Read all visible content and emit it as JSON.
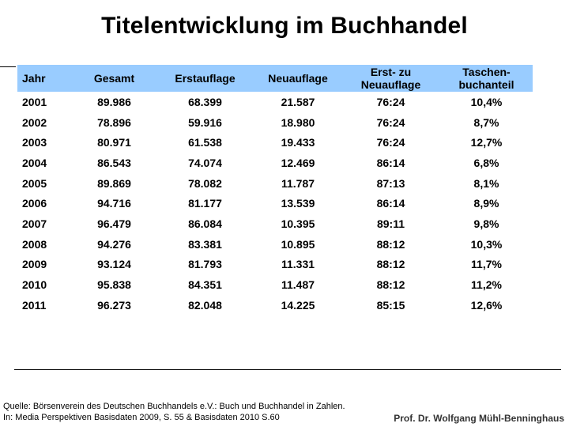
{
  "title": "Titelentwicklung im Buchhandel",
  "table": {
    "headers": [
      [
        "Jahr"
      ],
      [
        "Gesamt"
      ],
      [
        "Erstauflage"
      ],
      [
        "Neuauflage"
      ],
      [
        "Erst- zu",
        "Neuauflage"
      ],
      [
        "Taschen-",
        "buchanteil"
      ]
    ],
    "rows": [
      [
        "2001",
        "89.986",
        "68.399",
        "21.587",
        "76:24",
        "10,4%"
      ],
      [
        "2002",
        "78.896",
        "59.916",
        "18.980",
        "76:24",
        "8,7%"
      ],
      [
        "2003",
        "80.971",
        "61.538",
        "19.433",
        "76:24",
        "12,7%"
      ],
      [
        "2004",
        "86.543",
        "74.074",
        "12.469",
        "86:14",
        "6,8%"
      ],
      [
        "2005",
        "89.869",
        "78.082",
        "11.787",
        "87:13",
        "8,1%"
      ],
      [
        "2006",
        "94.716",
        "81.177",
        "13.539",
        "86:14",
        "8,9%"
      ],
      [
        "2007",
        "96.479",
        "86.084",
        "10.395",
        "89:11",
        "9,8%"
      ],
      [
        "2008",
        "94.276",
        "83.381",
        "10.895",
        "88:12",
        "10,3%"
      ],
      [
        "2009",
        "93.124",
        "81.793",
        "11.331",
        "88:12",
        "11,7%"
      ],
      [
        "2010",
        "95.838",
        "84.351",
        "11.487",
        "88:12",
        "11,2%"
      ],
      [
        "2011",
        "96.273",
        "82.048",
        "14.225",
        "85:15",
        "12,6%"
      ]
    ],
    "header_color": "#99ccff"
  },
  "source": {
    "line1": "Quelle: Börsenverein des Deutschen Buchhandels e.V.: Buch und Buchhandel in Zahlen.",
    "line2": "In: Media Perspektiven Basisdaten 2009, S. 55 & Basisdaten 2010 S.60"
  },
  "author": "Prof. Dr. Wolfgang Mühl-Benninghaus"
}
